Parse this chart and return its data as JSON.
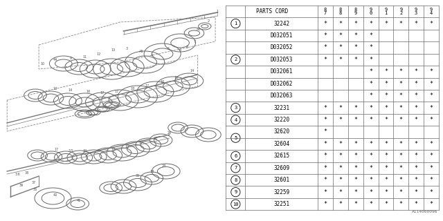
{
  "line_color": "#777777",
  "rows": [
    {
      "num": "1",
      "code": "32242",
      "marks": [
        1,
        1,
        1,
        1,
        1,
        1,
        1,
        1
      ],
      "circle_row": 0
    },
    {
      "num": "",
      "code": "D032051",
      "marks": [
        1,
        1,
        1,
        1,
        0,
        0,
        0,
        0
      ],
      "circle_row": -1
    },
    {
      "num": "",
      "code": "D032052",
      "marks": [
        1,
        1,
        1,
        1,
        0,
        0,
        0,
        0
      ],
      "circle_row": -1
    },
    {
      "num": "2",
      "code": "D032053",
      "marks": [
        1,
        1,
        1,
        1,
        0,
        0,
        0,
        0
      ],
      "circle_row": -1
    },
    {
      "num": "",
      "code": "D032061",
      "marks": [
        0,
        0,
        0,
        1,
        1,
        1,
        1,
        1
      ],
      "circle_row": -1
    },
    {
      "num": "",
      "code": "D032062",
      "marks": [
        0,
        0,
        0,
        1,
        1,
        1,
        1,
        1
      ],
      "circle_row": -1
    },
    {
      "num": "",
      "code": "D032063",
      "marks": [
        0,
        0,
        0,
        1,
        1,
        1,
        1,
        1
      ],
      "circle_row": -1
    },
    {
      "num": "3",
      "code": "32231",
      "marks": [
        1,
        1,
        1,
        1,
        1,
        1,
        1,
        1
      ],
      "circle_row": 0
    },
    {
      "num": "4",
      "code": "32220",
      "marks": [
        1,
        1,
        1,
        1,
        1,
        1,
        1,
        1
      ],
      "circle_row": 0
    },
    {
      "num": "",
      "code": "32620",
      "marks": [
        1,
        0,
        0,
        0,
        0,
        0,
        0,
        0
      ],
      "circle_row": -1
    },
    {
      "num": "5",
      "code": "32604",
      "marks": [
        1,
        1,
        1,
        1,
        1,
        1,
        1,
        1
      ],
      "circle_row": -1
    },
    {
      "num": "6",
      "code": "32615",
      "marks": [
        1,
        1,
        1,
        1,
        1,
        1,
        1,
        1
      ],
      "circle_row": 0
    },
    {
      "num": "7",
      "code": "32609",
      "marks": [
        1,
        1,
        1,
        1,
        1,
        1,
        1,
        1
      ],
      "circle_row": 0
    },
    {
      "num": "8",
      "code": "32601",
      "marks": [
        1,
        1,
        1,
        1,
        1,
        1,
        1,
        1
      ],
      "circle_row": 0
    },
    {
      "num": "9",
      "code": "32259",
      "marks": [
        1,
        1,
        1,
        1,
        1,
        1,
        1,
        1
      ],
      "circle_row": 0
    },
    {
      "num": "10",
      "code": "32251",
      "marks": [
        1,
        1,
        1,
        1,
        1,
        1,
        1,
        1
      ],
      "circle_row": 0
    }
  ],
  "year_headers": [
    "8\n7",
    "8\n8",
    "8\n9",
    "9\n0",
    "9\n1",
    "9\n2",
    "9\n3",
    "9\n4"
  ],
  "footnote": "A114000096",
  "font_size": 5.5,
  "lc": "#666666"
}
